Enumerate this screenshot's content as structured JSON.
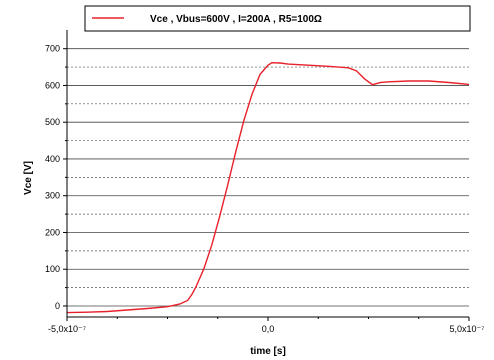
{
  "chart_data": {
    "type": "line",
    "xlabel": "time [s]",
    "ylabel": "Vce [V]",
    "xlim": [
      -5e-07,
      5e-07
    ],
    "ylim": [
      -30,
      740
    ],
    "x_ticks": [
      -5e-07,
      0,
      5e-07
    ],
    "x_tick_labels": [
      "-5,0x10⁻⁷",
      "0,0",
      "5,0x10⁻⁷"
    ],
    "y_ticks": [
      0,
      100,
      200,
      300,
      400,
      500,
      600,
      700
    ],
    "y_tick_labels": [
      "0",
      "100",
      "200",
      "300",
      "400",
      "500",
      "600",
      "700"
    ],
    "grid": {
      "major_solid": true,
      "minor_dashed": true
    },
    "legend_position": "top",
    "series": [
      {
        "name": "Vce , Vbus=600V , I=200A , R5=100Ω",
        "color": "#e8202a",
        "x": [
          -5e-07,
          -4.5e-07,
          -4e-07,
          -3.5e-07,
          -3e-07,
          -2.5e-07,
          -2.2e-07,
          -2e-07,
          -1.9e-07,
          -1.8e-07,
          -1.6e-07,
          -1.4e-07,
          -1.2e-07,
          -1e-07,
          -8e-08,
          -6e-08,
          -4e-08,
          -2e-08,
          0,
          1e-08,
          3e-08,
          5e-08,
          1e-07,
          1.5e-07,
          2e-07,
          2.2e-07,
          2.4e-07,
          2.6e-07,
          2.8e-07,
          3e-07,
          3.5e-07,
          4e-07,
          4.5e-07,
          5e-07
        ],
        "values": [
          -18,
          -17,
          -15,
          -11,
          -7,
          -2,
          5,
          15,
          30,
          50,
          100,
          165,
          245,
          330,
          420,
          505,
          575,
          630,
          655,
          662,
          661,
          658,
          655,
          652,
          648,
          640,
          618,
          602,
          608,
          610,
          612,
          612,
          608,
          603
        ]
      }
    ]
  }
}
